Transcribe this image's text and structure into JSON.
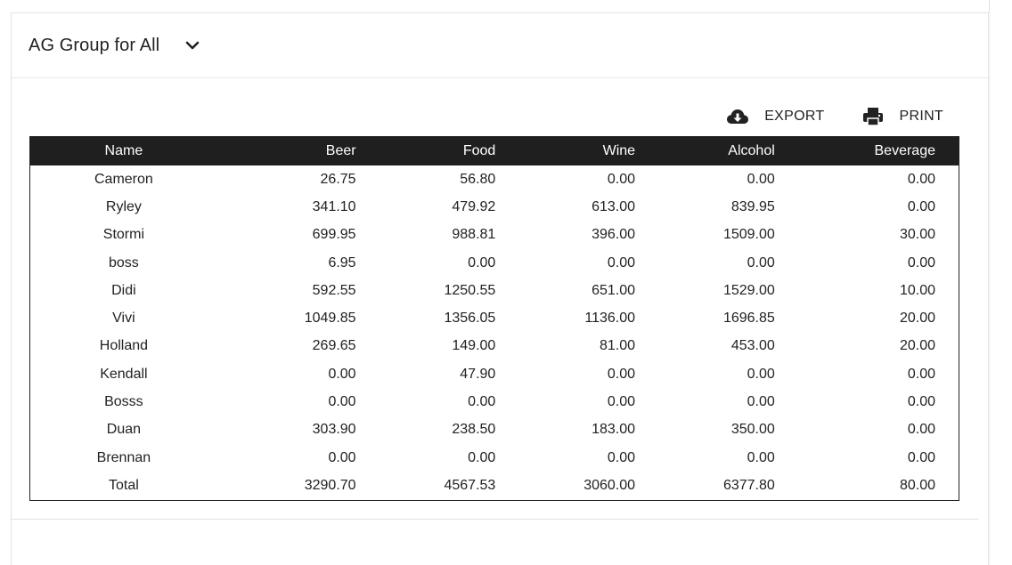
{
  "header": {
    "group_title": "AG Group for All",
    "dropdown_icon": "chevron-down-icon"
  },
  "actions": {
    "export_label": "EXPORT",
    "export_icon": "cloud-download-icon",
    "print_label": "PRINT",
    "print_icon": "printer-icon"
  },
  "table": {
    "columns": [
      "Name",
      "Beer",
      "Food",
      "Wine",
      "Alcohol",
      "Beverage"
    ],
    "rows": [
      [
        "Cameron",
        "26.75",
        "56.80",
        "0.00",
        "0.00",
        "0.00"
      ],
      [
        "Ryley",
        "341.10",
        "479.92",
        "613.00",
        "839.95",
        "0.00"
      ],
      [
        "Stormi",
        "699.95",
        "988.81",
        "396.00",
        "1509.00",
        "30.00"
      ],
      [
        "boss",
        "6.95",
        "0.00",
        "0.00",
        "0.00",
        "0.00"
      ],
      [
        "Didi",
        "592.55",
        "1250.55",
        "651.00",
        "1529.00",
        "10.00"
      ],
      [
        "Vivi",
        "1049.85",
        "1356.05",
        "1136.00",
        "1696.85",
        "20.00"
      ],
      [
        "Holland",
        "269.65",
        "149.00",
        "81.00",
        "453.00",
        "20.00"
      ],
      [
        "Kendall",
        "0.00",
        "47.90",
        "0.00",
        "0.00",
        "0.00"
      ],
      [
        "Bosss",
        "0.00",
        "0.00",
        "0.00",
        "0.00",
        "0.00"
      ],
      [
        "Duan",
        "303.90",
        "238.50",
        "183.00",
        "350.00",
        "0.00"
      ],
      [
        "Brennan",
        "0.00",
        "0.00",
        "0.00",
        "0.00",
        "0.00"
      ],
      [
        "Total",
        "3290.70",
        "4567.53",
        "3060.00",
        "6377.80",
        "80.00"
      ]
    ]
  }
}
